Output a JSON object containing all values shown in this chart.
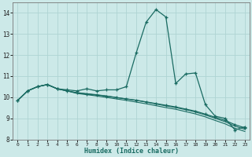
{
  "xlabel": "Humidex (Indice chaleur)",
  "xlim": [
    -0.5,
    23.5
  ],
  "ylim": [
    8.0,
    14.5
  ],
  "yticks": [
    8,
    9,
    10,
    11,
    12,
    13,
    14
  ],
  "xticks": [
    0,
    1,
    2,
    3,
    4,
    5,
    6,
    7,
    8,
    9,
    10,
    11,
    12,
    13,
    14,
    15,
    16,
    17,
    18,
    19,
    20,
    21,
    22,
    23
  ],
  "bg_color": "#cce9e8",
  "grid_color": "#afd4d3",
  "line_color": "#1a6b62",
  "lines": [
    {
      "x": [
        0,
        1,
        2,
        3,
        4,
        5,
        6,
        7,
        8,
        9,
        10,
        11,
        12,
        13,
        14,
        15,
        16,
        17,
        18,
        19,
        20,
        21,
        22,
        23
      ],
      "y": [
        9.85,
        10.3,
        10.5,
        10.6,
        10.4,
        10.35,
        10.3,
        10.4,
        10.3,
        10.35,
        10.35,
        10.5,
        12.1,
        13.55,
        14.15,
        13.8,
        10.65,
        11.1,
        11.15,
        9.65,
        9.1,
        9.0,
        8.45,
        8.6
      ],
      "marker": true
    },
    {
      "x": [
        0,
        1,
        2,
        3,
        4,
        5,
        6,
        7,
        8,
        9,
        10,
        11,
        12,
        13,
        14,
        15,
        16,
        17,
        18,
        19,
        20,
        21,
        22,
        23
      ],
      "y": [
        9.85,
        10.3,
        10.5,
        10.6,
        10.4,
        10.3,
        10.2,
        10.15,
        10.1,
        10.05,
        9.98,
        9.92,
        9.86,
        9.78,
        9.7,
        9.62,
        9.54,
        9.44,
        9.34,
        9.2,
        9.05,
        8.9,
        8.7,
        8.55
      ],
      "marker": true
    },
    {
      "x": [
        0,
        1,
        2,
        3,
        4,
        5,
        6,
        7,
        8,
        9,
        10,
        11,
        12,
        13,
        14,
        15,
        16,
        17,
        18,
        19,
        20,
        21,
        22,
        23
      ],
      "y": [
        9.85,
        10.3,
        10.5,
        10.6,
        10.4,
        10.3,
        10.22,
        10.17,
        10.12,
        10.06,
        9.99,
        9.92,
        9.85,
        9.77,
        9.68,
        9.59,
        9.51,
        9.41,
        9.3,
        9.16,
        9.0,
        8.84,
        8.63,
        8.48
      ],
      "marker": false
    },
    {
      "x": [
        0,
        1,
        2,
        3,
        4,
        5,
        6,
        7,
        8,
        9,
        10,
        11,
        12,
        13,
        14,
        15,
        16,
        17,
        18,
        19,
        20,
        21,
        22,
        23
      ],
      "y": [
        9.85,
        10.3,
        10.5,
        10.6,
        10.4,
        10.3,
        10.18,
        10.12,
        10.06,
        9.99,
        9.92,
        9.85,
        9.77,
        9.69,
        9.6,
        9.51,
        9.43,
        9.32,
        9.21,
        9.07,
        8.9,
        8.74,
        8.53,
        8.38
      ],
      "marker": false
    }
  ]
}
